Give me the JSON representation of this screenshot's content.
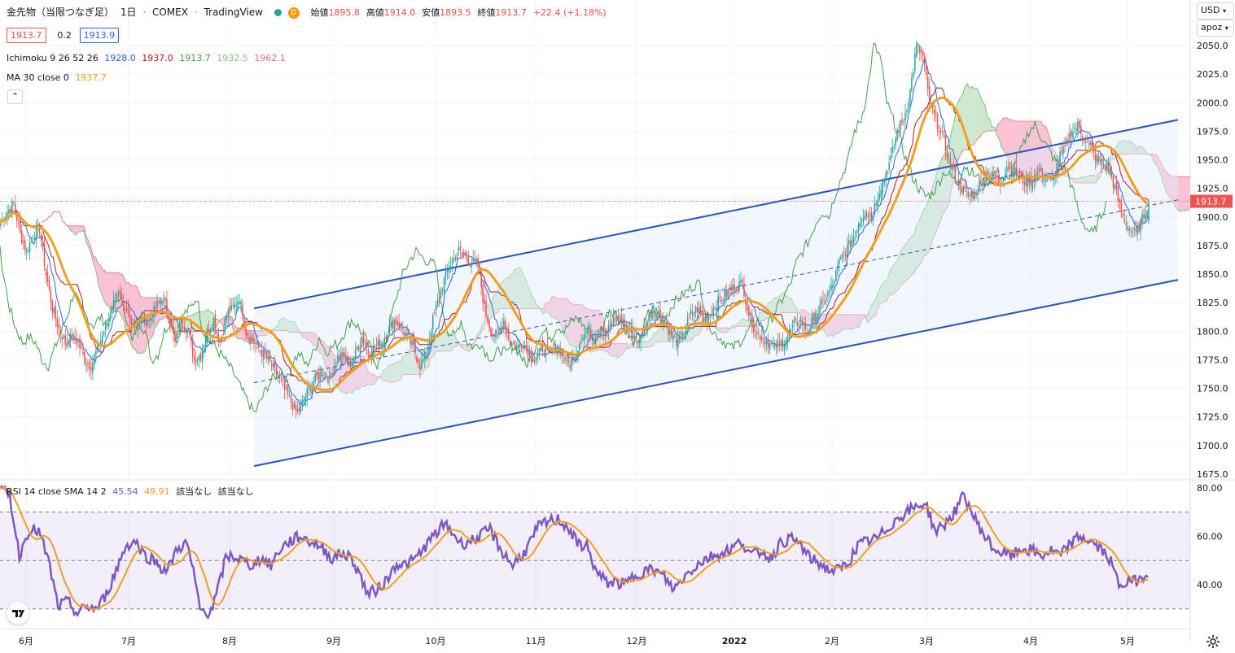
{
  "header": {
    "symbol": "金先物（当限つなぎ足）",
    "interval": "1日",
    "exchange": "COMEX",
    "provider": "TradingView",
    "feed_flag": "D",
    "open_label": "始値",
    "open": "1895.8",
    "high_label": "高値",
    "high": "1914.0",
    "low_label": "安値",
    "low": "1893.5",
    "close_label": "終値",
    "close": "1913.7",
    "change": "+22.4 (+1.18%)",
    "bid": "1913.7",
    "spread": "0.2",
    "ask": "1913.9"
  },
  "indicators": {
    "ichimoku_label": "Ichimoku 9 26 52 26",
    "ichimoku_values": [
      "1928.0",
      "1937.0",
      "1913.7",
      "1932.5",
      "1962.1"
    ],
    "ma_label": "MA 30 close 0",
    "ma_value": "1937.7",
    "rsi_label": "RSI 14 close SMA 14 2",
    "rsi_value": "45.54",
    "rsi_sma_value": "49.91",
    "rsi_na1": "該当なし",
    "rsi_na2": "該当なし"
  },
  "controls": {
    "currency": "USD",
    "scale": "apoz"
  },
  "colors": {
    "up": "#26a69a",
    "down": "#ef5350",
    "ma": "#f0a020",
    "rsi": "#7e57c2",
    "conversion": "#2962ff",
    "base": "#b71c1c",
    "lagging": "#43a047",
    "cloud_bull": "#a5d6a7",
    "cloud_bear": "#f48fb1",
    "channel": "#2952c9"
  },
  "chart_data": {
    "type": "candlestick",
    "x_tick_labels": [
      "6月",
      "7月",
      "8月",
      "9月",
      "10月",
      "11月",
      "12月",
      "2022",
      "2月",
      "3月",
      "4月",
      "5月"
    ],
    "price_axis": {
      "range": [
        1675,
        2075
      ],
      "ticks": [
        2050,
        2025,
        2000,
        1975,
        1950,
        1925,
        1900,
        1875,
        1850,
        1825,
        1800,
        1775,
        1750,
        1725,
        1700,
        1675
      ]
    },
    "last_price_label": "1913.7",
    "rsi_axis": {
      "range": [
        20,
        80
      ],
      "ticks": [
        80,
        60,
        40
      ],
      "band": [
        30,
        70
      ],
      "mid": 50
    },
    "price_anchors": [
      [
        0,
        1895
      ],
      [
        4,
        1905
      ],
      [
        8,
        1912
      ],
      [
        12,
        1885
      ],
      [
        16,
        1870
      ],
      [
        20,
        1885
      ],
      [
        24,
        1890
      ],
      [
        28,
        1850
      ],
      [
        32,
        1820
      ],
      [
        36,
        1802
      ],
      [
        40,
        1790
      ],
      [
        44,
        1795
      ],
      [
        48,
        1790
      ],
      [
        52,
        1775
      ],
      [
        56,
        1770
      ],
      [
        60,
        1785
      ],
      [
        64,
        1800
      ],
      [
        68,
        1815
      ],
      [
        72,
        1835
      ],
      [
        76,
        1820
      ],
      [
        80,
        1812
      ],
      [
        84,
        1805
      ],
      [
        88,
        1812
      ],
      [
        92,
        1808
      ],
      [
        96,
        1820
      ],
      [
        100,
        1830
      ],
      [
        104,
        1815
      ],
      [
        108,
        1790
      ],
      [
        112,
        1810
      ],
      [
        116,
        1800
      ],
      [
        120,
        1775
      ],
      [
        124,
        1780
      ],
      [
        128,
        1800
      ],
      [
        132,
        1810
      ],
      [
        136,
        1790
      ],
      [
        140,
        1815
      ],
      [
        144,
        1820
      ],
      [
        148,
        1830
      ],
      [
        152,
        1800
      ],
      [
        156,
        1792
      ],
      [
        160,
        1785
      ],
      [
        164,
        1778
      ],
      [
        168,
        1770
      ],
      [
        172,
        1760
      ],
      [
        176,
        1748
      ],
      [
        180,
        1738
      ],
      [
        184,
        1728
      ],
      [
        188,
        1740
      ],
      [
        192,
        1752
      ],
      [
        196,
        1760
      ],
      [
        200,
        1765
      ],
      [
        204,
        1758
      ],
      [
        208,
        1775
      ],
      [
        212,
        1780
      ],
      [
        216,
        1770
      ],
      [
        220,
        1780
      ],
      [
        224,
        1795
      ],
      [
        228,
        1782
      ],
      [
        232,
        1786
      ],
      [
        236,
        1790
      ],
      [
        240,
        1800
      ],
      [
        244,
        1810
      ],
      [
        248,
        1804
      ],
      [
        252,
        1795
      ],
      [
        256,
        1785
      ],
      [
        260,
        1770
      ],
      [
        264,
        1780
      ],
      [
        268,
        1810
      ],
      [
        272,
        1830
      ],
      [
        276,
        1850
      ],
      [
        280,
        1862
      ],
      [
        284,
        1870
      ],
      [
        288,
        1865
      ],
      [
        292,
        1860
      ],
      [
        296,
        1858
      ],
      [
        300,
        1820
      ],
      [
        304,
        1800
      ],
      [
        308,
        1795
      ],
      [
        312,
        1810
      ],
      [
        316,
        1790
      ],
      [
        320,
        1786
      ],
      [
        324,
        1790
      ],
      [
        328,
        1780
      ],
      [
        332,
        1775
      ],
      [
        336,
        1785
      ],
      [
        340,
        1780
      ],
      [
        344,
        1788
      ],
      [
        348,
        1782
      ],
      [
        352,
        1770
      ],
      [
        356,
        1778
      ],
      [
        360,
        1795
      ],
      [
        364,
        1800
      ],
      [
        368,
        1795
      ],
      [
        372,
        1805
      ],
      [
        376,
        1800
      ],
      [
        380,
        1808
      ],
      [
        384,
        1812
      ],
      [
        388,
        1805
      ],
      [
        392,
        1798
      ],
      [
        396,
        1790
      ],
      [
        400,
        1805
      ],
      [
        404,
        1820
      ],
      [
        408,
        1815
      ],
      [
        412,
        1808
      ],
      [
        416,
        1795
      ],
      [
        420,
        1790
      ],
      [
        424,
        1800
      ],
      [
        428,
        1815
      ],
      [
        432,
        1820
      ],
      [
        436,
        1810
      ],
      [
        440,
        1815
      ],
      [
        444,
        1825
      ],
      [
        448,
        1830
      ],
      [
        452,
        1835
      ],
      [
        456,
        1840
      ],
      [
        460,
        1842
      ],
      [
        464,
        1815
      ],
      [
        468,
        1800
      ],
      [
        472,
        1795
      ],
      [
        476,
        1790
      ],
      [
        480,
        1785
      ],
      [
        484,
        1790
      ],
      [
        488,
        1795
      ],
      [
        492,
        1805
      ],
      [
        496,
        1810
      ],
      [
        500,
        1800
      ],
      [
        504,
        1810
      ],
      [
        508,
        1820
      ],
      [
        512,
        1830
      ],
      [
        516,
        1840
      ],
      [
        520,
        1860
      ],
      [
        524,
        1870
      ],
      [
        528,
        1880
      ],
      [
        532,
        1895
      ],
      [
        536,
        1905
      ],
      [
        540,
        1900
      ],
      [
        544,
        1920
      ],
      [
        548,
        1935
      ],
      [
        552,
        1950
      ],
      [
        556,
        1975
      ],
      [
        560,
        1985
      ],
      [
        564,
        2010
      ],
      [
        568,
        2050
      ],
      [
        572,
        2040
      ],
      [
        576,
        2000
      ],
      [
        580,
        1985
      ],
      [
        584,
        1970
      ],
      [
        588,
        1950
      ],
      [
        592,
        1935
      ],
      [
        596,
        1925
      ],
      [
        600,
        1918
      ],
      [
        604,
        1920
      ],
      [
        608,
        1930
      ],
      [
        612,
        1940
      ],
      [
        616,
        1935
      ],
      [
        620,
        1930
      ],
      [
        624,
        1945
      ],
      [
        628,
        1940
      ],
      [
        632,
        1935
      ],
      [
        636,
        1930
      ],
      [
        640,
        1932
      ],
      [
        644,
        1940
      ],
      [
        648,
        1935
      ],
      [
        652,
        1930
      ],
      [
        656,
        1950
      ],
      [
        660,
        1960
      ],
      [
        664,
        1975
      ],
      [
        668,
        1980
      ],
      [
        672,
        1970
      ],
      [
        676,
        1960
      ],
      [
        680,
        1950
      ],
      [
        684,
        1945
      ],
      [
        688,
        1940
      ],
      [
        692,
        1920
      ],
      [
        696,
        1900
      ],
      [
        700,
        1890
      ],
      [
        704,
        1885
      ],
      [
        708,
        1898
      ],
      [
        712,
        1913.7
      ]
    ],
    "channel": {
      "upper": [
        [
          0,
          1820
        ],
        [
          713,
          1985
        ]
      ],
      "lower": [
        [
          0,
          1682
        ],
        [
          713,
          1845
        ]
      ],
      "mid": [
        [
          0,
          1755
        ],
        [
          713,
          1915
        ]
      ]
    },
    "rsi_anchors": [
      [
        0,
        79
      ],
      [
        6,
        77
      ],
      [
        12,
        52
      ],
      [
        18,
        63
      ],
      [
        24,
        62
      ],
      [
        30,
        50
      ],
      [
        36,
        31
      ],
      [
        42,
        33
      ],
      [
        48,
        28
      ],
      [
        54,
        31
      ],
      [
        60,
        30
      ],
      [
        66,
        36
      ],
      [
        72,
        46
      ],
      [
        78,
        56
      ],
      [
        84,
        58
      ],
      [
        90,
        52
      ],
      [
        96,
        50
      ],
      [
        100,
        47
      ],
      [
        104,
        46
      ],
      [
        110,
        55
      ],
      [
        116,
        57
      ],
      [
        120,
        45
      ],
      [
        124,
        30
      ],
      [
        128,
        28
      ],
      [
        132,
        31
      ],
      [
        136,
        40
      ],
      [
        140,
        51
      ],
      [
        144,
        52
      ],
      [
        150,
        50
      ],
      [
        156,
        48
      ],
      [
        162,
        51
      ],
      [
        168,
        48
      ],
      [
        174,
        55
      ],
      [
        180,
        58
      ],
      [
        186,
        60
      ],
      [
        192,
        58
      ],
      [
        196,
        57
      ],
      [
        200,
        55
      ],
      [
        206,
        51
      ],
      [
        212,
        53
      ],
      [
        218,
        51
      ],
      [
        224,
        43
      ],
      [
        228,
        36
      ],
      [
        234,
        38
      ],
      [
        240,
        42
      ],
      [
        246,
        49
      ],
      [
        252,
        48
      ],
      [
        258,
        51
      ],
      [
        264,
        56
      ],
      [
        270,
        61
      ],
      [
        276,
        65
      ],
      [
        280,
        62
      ],
      [
        286,
        57
      ],
      [
        292,
        58
      ],
      [
        298,
        60
      ],
      [
        304,
        63
      ],
      [
        310,
        55
      ],
      [
        318,
        48
      ],
      [
        326,
        54
      ],
      [
        334,
        64
      ],
      [
        340,
        66
      ],
      [
        346,
        67
      ],
      [
        352,
        64
      ],
      [
        358,
        57
      ],
      [
        364,
        56
      ],
      [
        370,
        45
      ],
      [
        376,
        41
      ],
      [
        382,
        41
      ],
      [
        388,
        40
      ],
      [
        394,
        44
      ],
      [
        400,
        46
      ],
      [
        406,
        46
      ],
      [
        412,
        43
      ],
      [
        418,
        38
      ],
      [
        424,
        43
      ],
      [
        430,
        47
      ],
      [
        436,
        50
      ],
      [
        442,
        52
      ],
      [
        448,
        53
      ],
      [
        454,
        55
      ],
      [
        460,
        58
      ],
      [
        466,
        52
      ],
      [
        472,
        54
      ],
      [
        478,
        51
      ],
      [
        484,
        57
      ],
      [
        490,
        59
      ],
      [
        496,
        57
      ],
      [
        502,
        51
      ],
      [
        508,
        49
      ],
      [
        514,
        46
      ],
      [
        520,
        46
      ],
      [
        526,
        49
      ],
      [
        532,
        56
      ],
      [
        538,
        58
      ],
      [
        544,
        59
      ],
      [
        550,
        63
      ],
      [
        556,
        67
      ],
      [
        562,
        70
      ],
      [
        568,
        72
      ],
      [
        574,
        74
      ],
      [
        580,
        62
      ],
      [
        586,
        65
      ],
      [
        592,
        70
      ],
      [
        598,
        77
      ],
      [
        604,
        68
      ],
      [
        610,
        61
      ],
      [
        616,
        55
      ],
      [
        622,
        53
      ],
      [
        628,
        52
      ],
      [
        634,
        55
      ],
      [
        640,
        54
      ],
      [
        646,
        52
      ],
      [
        652,
        54
      ],
      [
        658,
        52
      ],
      [
        664,
        57
      ],
      [
        670,
        60
      ],
      [
        676,
        58
      ],
      [
        682,
        55
      ],
      [
        688,
        51
      ],
      [
        694,
        40
      ],
      [
        700,
        41
      ],
      [
        706,
        42
      ],
      [
        712,
        45.5
      ]
    ]
  }
}
